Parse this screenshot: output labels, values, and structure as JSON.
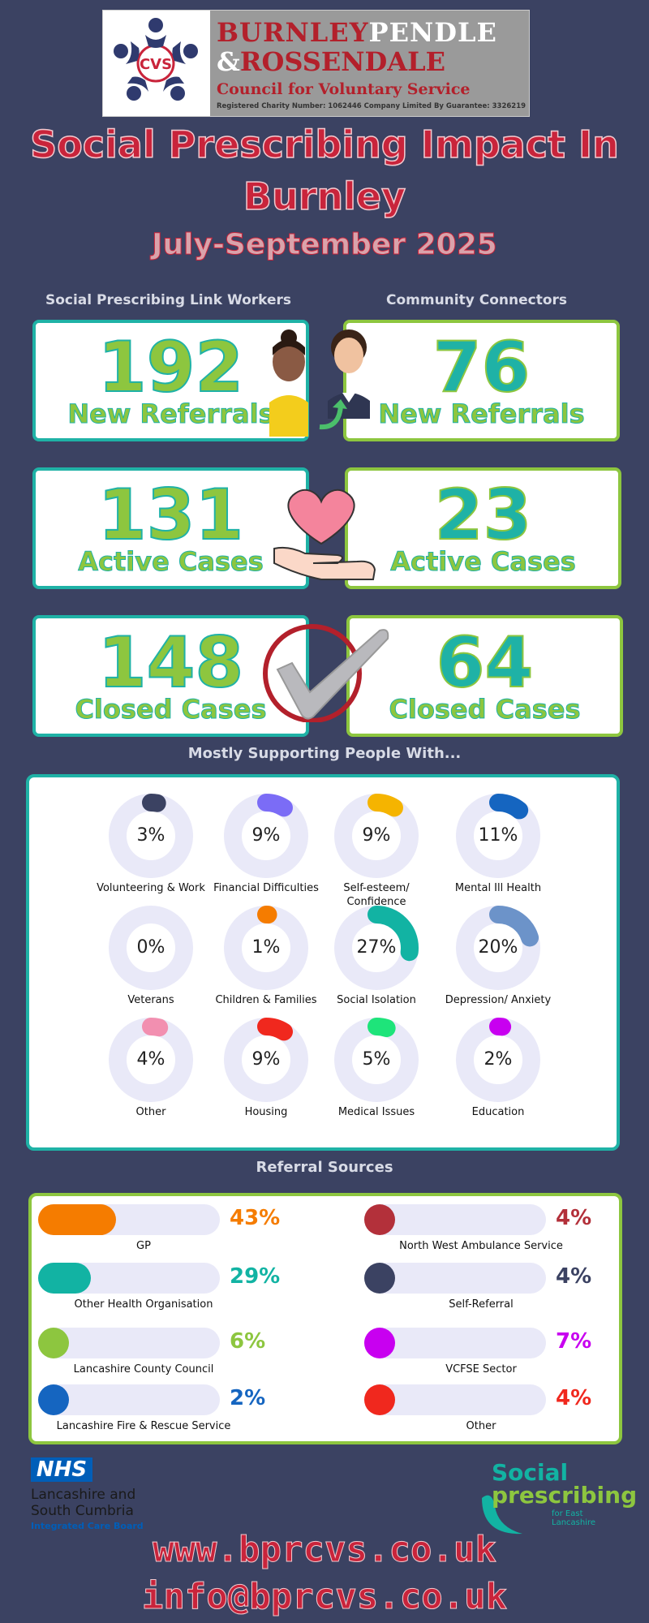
{
  "header": {
    "logo_mark": "CVS",
    "logo_line1_a": "BURNLEY",
    "logo_line1_b": "PENDLE",
    "logo_line2_a": "&",
    "logo_line2_b": "ROSSENDALE",
    "logo_line3": "Council for Voluntary Service",
    "logo_line4": "Registered Charity Number: 1062446     Company Limited By Guarantee: 3326219",
    "title_line1": "Social Prescribing Impact In",
    "title_line2": "Burnley",
    "subtitle": "July-September 2025"
  },
  "columns": {
    "left_heading": "Social Prescribing Link Workers",
    "right_heading": "Community Connectors"
  },
  "stats": [
    {
      "left_value": "192",
      "right_value": "76",
      "label": "New Referrals"
    },
    {
      "left_value": "131",
      "right_value": "23",
      "label": "Active Cases"
    },
    {
      "left_value": "148",
      "right_value": "64",
      "label": "Closed Cases"
    }
  ],
  "support": {
    "heading": "Mostly Supporting People With...",
    "items": [
      {
        "pct_label": "3%",
        "value": 3,
        "label": "Volunteering & Work",
        "color": "#3b4262"
      },
      {
        "pct_label": "9%",
        "value": 9,
        "label": "Financial Difficulties",
        "color": "#7b6cf6"
      },
      {
        "pct_label": "9%",
        "value": 9,
        "label": "Self-esteem/ Confidence",
        "color": "#f5b400"
      },
      {
        "pct_label": "11%",
        "value": 11,
        "label": "Mental Ill Health",
        "color": "#1565c0"
      },
      {
        "pct_label": "0%",
        "value": 0,
        "label": "Veterans",
        "color": "#3b4262"
      },
      {
        "pct_label": "1%",
        "value": 1,
        "label": "Children & Families",
        "color": "#f57c00"
      },
      {
        "pct_label": "27%",
        "value": 27,
        "label": "Social Isolation",
        "color": "#12b3a3"
      },
      {
        "pct_label": "20%",
        "value": 20,
        "label": "Depression/ Anxiety",
        "color": "#6c93c9"
      },
      {
        "pct_label": "4%",
        "value": 4,
        "label": "Other",
        "color": "#f28fb0"
      },
      {
        "pct_label": "9%",
        "value": 9,
        "label": "Housing",
        "color": "#f0281e"
      },
      {
        "pct_label": "5%",
        "value": 5,
        "label": "Medical Issues",
        "color": "#1ee47a"
      },
      {
        "pct_label": "2%",
        "value": 2,
        "label": "Education",
        "color": "#c800f0"
      }
    ]
  },
  "referrals": {
    "heading": "Referral Sources",
    "items": [
      {
        "pct_label": "43%",
        "value": 43,
        "label": "GP",
        "color": "#f57c00"
      },
      {
        "pct_label": "4%",
        "value": 4,
        "label": "North West Ambulance Service",
        "color": "#b3303a"
      },
      {
        "pct_label": "29%",
        "value": 29,
        "label": "Other Health Organisation",
        "color": "#12b3a3"
      },
      {
        "pct_label": "4%",
        "value": 4,
        "label": "Self-Referral",
        "color": "#3b4262"
      },
      {
        "pct_label": "6%",
        "value": 6,
        "label": "Lancashire County Council",
        "color": "#8dc63f"
      },
      {
        "pct_label": "7%",
        "value": 7,
        "label": "VCFSE Sector",
        "color": "#c800f0"
      },
      {
        "pct_label": "2%",
        "value": 2,
        "label": "Lancashire Fire & Rescue Service",
        "color": "#1565c0"
      },
      {
        "pct_label": "4%",
        "value": 4,
        "label": "Other",
        "color": "#f0281e"
      }
    ]
  },
  "footer": {
    "nhs_badge": "NHS",
    "nhs_line1": "Lancashire and",
    "nhs_line2": "South Cumbria",
    "nhs_line3": "Integrated Care Board",
    "sp_line1": "Social",
    "sp_line2": "prescribing",
    "sp_line3": "for East Lancashire",
    "website": "www.bprcvs.co.uk",
    "email": "info@bprcvs.co.uk"
  }
}
